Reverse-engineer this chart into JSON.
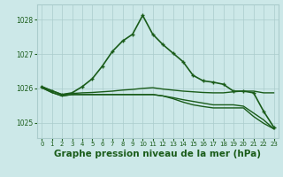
{
  "background_color": "#cce8e8",
  "grid_color": "#aacccc",
  "line_color": "#1a5c1a",
  "xlabel": "Graphe pression niveau de la mer (hPa)",
  "xlabel_fontsize": 7.5,
  "xlim": [
    -0.5,
    23.5
  ],
  "ylim": [
    1024.55,
    1028.45
  ],
  "yticks": [
    1025,
    1026,
    1027,
    1028
  ],
  "ytick_labels": [
    "1025",
    "1026",
    "1027",
    "1028"
  ],
  "xticks": [
    0,
    1,
    2,
    3,
    4,
    5,
    6,
    7,
    8,
    9,
    10,
    11,
    12,
    13,
    14,
    15,
    16,
    17,
    18,
    19,
    20,
    21,
    22,
    23
  ],
  "series": [
    {
      "x": [
        0,
        1,
        2,
        3,
        4,
        5,
        6,
        7,
        8,
        9,
        10,
        11,
        12,
        13,
        14,
        15,
        16,
        17,
        18,
        19,
        20,
        21,
        22,
        23
      ],
      "y": [
        1026.05,
        1025.93,
        1025.82,
        1025.87,
        1026.05,
        1026.28,
        1026.65,
        1027.08,
        1027.38,
        1027.58,
        1028.13,
        1027.58,
        1027.28,
        1027.03,
        1026.78,
        1026.38,
        1026.22,
        1026.18,
        1026.12,
        1025.92,
        1025.92,
        1025.87,
        1025.33,
        1024.87
      ],
      "with_markers": true,
      "linewidth": 1.2
    },
    {
      "x": [
        0,
        1,
        2,
        3,
        4,
        5,
        6,
        7,
        8,
        9,
        10,
        11,
        12,
        13,
        14,
        15,
        16,
        17,
        18,
        19,
        20,
        21,
        22,
        23
      ],
      "y": [
        1026.05,
        1025.93,
        1025.82,
        1025.85,
        1025.87,
        1025.88,
        1025.9,
        1025.92,
        1025.95,
        1025.97,
        1026.0,
        1026.02,
        1025.98,
        1025.95,
        1025.92,
        1025.9,
        1025.88,
        1025.87,
        1025.87,
        1025.9,
        1025.92,
        1025.92,
        1025.87,
        1025.87
      ],
      "with_markers": false,
      "linewidth": 1.0
    },
    {
      "x": [
        0,
        1,
        2,
        3,
        4,
        5,
        6,
        7,
        8,
        9,
        10,
        11,
        12,
        13,
        14,
        15,
        16,
        17,
        18,
        19,
        20,
        21,
        22,
        23
      ],
      "y": [
        1026.02,
        1025.88,
        1025.78,
        1025.82,
        1025.82,
        1025.82,
        1025.82,
        1025.82,
        1025.82,
        1025.82,
        1025.82,
        1025.82,
        1025.78,
        1025.73,
        1025.67,
        1025.62,
        1025.57,
        1025.52,
        1025.52,
        1025.52,
        1025.48,
        1025.28,
        1025.08,
        1024.82
      ],
      "with_markers": false,
      "linewidth": 1.0
    },
    {
      "x": [
        0,
        1,
        2,
        3,
        4,
        5,
        6,
        7,
        8,
        9,
        10,
        11,
        12,
        13,
        14,
        15,
        16,
        17,
        18,
        19,
        20,
        21,
        22,
        23
      ],
      "y": [
        1026.02,
        1025.88,
        1025.78,
        1025.82,
        1025.82,
        1025.82,
        1025.82,
        1025.82,
        1025.82,
        1025.82,
        1025.82,
        1025.82,
        1025.78,
        1025.7,
        1025.6,
        1025.52,
        1025.47,
        1025.43,
        1025.43,
        1025.43,
        1025.43,
        1025.18,
        1024.98,
        1024.82
      ],
      "with_markers": false,
      "linewidth": 1.0
    }
  ]
}
